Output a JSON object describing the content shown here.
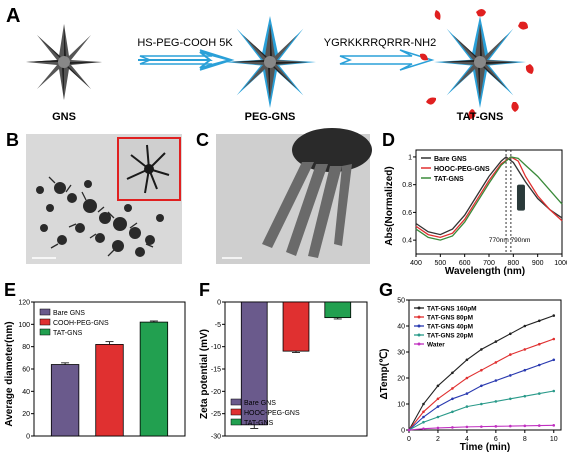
{
  "panel_letters": {
    "A": "A",
    "B": "B",
    "C": "C",
    "D": "D",
    "E": "E",
    "F": "F",
    "G": "G"
  },
  "schematic": {
    "step1_label": "HS-PEG-COOH 5K",
    "step2_label": "YGRKKRRQRRR-NH2",
    "particles": [
      "GNS",
      "PEG-GNS",
      "TAT-GNS"
    ],
    "colors": {
      "core": "#444444",
      "peg": "#2aa0d8",
      "tat": "#e02020",
      "arrow": "#2aa0d8"
    }
  },
  "chart_data": [
    {
      "panel": "D",
      "type": "line",
      "xlabel": "Wavelength (nm)",
      "ylabel": "Abs(Normalized)",
      "xlim": [
        400,
        1000
      ],
      "ylim": [
        0.3,
        1.05
      ],
      "xticks": [
        400,
        500,
        600,
        700,
        800,
        900,
        1000
      ],
      "yticks": [
        0.4,
        0.6,
        0.8,
        1.0
      ],
      "markers": [
        770,
        790
      ],
      "marker_label": "770nm 790nm",
      "legend_position": "top-left",
      "series": [
        {
          "name": "Bare GNS",
          "color": "#333333",
          "x": [
            400,
            450,
            500,
            550,
            600,
            650,
            700,
            750,
            770,
            800,
            850,
            900,
            950,
            1000
          ],
          "y": [
            0.52,
            0.46,
            0.44,
            0.48,
            0.58,
            0.72,
            0.86,
            0.97,
            1.0,
            0.96,
            0.82,
            0.7,
            0.62,
            0.56
          ]
        },
        {
          "name": "HOOC-PEG-GNS",
          "color": "#e03030",
          "x": [
            400,
            450,
            500,
            550,
            600,
            650,
            700,
            750,
            790,
            820,
            850,
            900,
            950,
            1000
          ],
          "y": [
            0.5,
            0.44,
            0.42,
            0.45,
            0.55,
            0.69,
            0.83,
            0.95,
            1.0,
            0.97,
            0.86,
            0.72,
            0.62,
            0.54
          ]
        },
        {
          "name": "TAT-GNS",
          "color": "#3a8a3a",
          "x": [
            400,
            450,
            500,
            550,
            600,
            650,
            700,
            750,
            790,
            820,
            850,
            900,
            950,
            1000
          ],
          "y": [
            0.48,
            0.42,
            0.4,
            0.43,
            0.53,
            0.67,
            0.81,
            0.94,
            1.0,
            0.99,
            0.94,
            0.86,
            0.76,
            0.66
          ]
        }
      ]
    },
    {
      "panel": "E",
      "type": "bar",
      "ylabel": "Average diameter(nm)",
      "ylim": [
        0,
        120
      ],
      "yticks": [
        0,
        20,
        40,
        60,
        80,
        100,
        120
      ],
      "legend_position": "top-left",
      "categories": [
        "Bare GNS",
        "COOH-PEG-GNS",
        "TAT-GNS"
      ],
      "values": [
        64,
        82,
        102
      ],
      "errors": [
        1.5,
        2.5,
        1.0
      ],
      "colors": [
        "#6a5a8c",
        "#e03030",
        "#22a050"
      ]
    },
    {
      "panel": "F",
      "type": "bar",
      "ylabel": "Zeta potential (mV)",
      "ylim": [
        -30,
        0
      ],
      "yticks": [
        -30,
        -25,
        -20,
        -15,
        -10,
        -5,
        0
      ],
      "legend_position": "bottom-right",
      "categories": [
        "Bare GNS",
        "HOOC-PEG-GNS",
        "TAT-GNS"
      ],
      "values": [
        -27.5,
        -11,
        -3.5
      ],
      "errors": [
        0.8,
        0.3,
        0.3
      ],
      "colors": [
        "#6a5a8c",
        "#e03030",
        "#22a050"
      ]
    },
    {
      "panel": "G",
      "type": "line",
      "xlabel": "Time (min)",
      "ylabel": "ΔTemp(℃)",
      "xlim": [
        0,
        10.5
      ],
      "ylim": [
        0,
        50
      ],
      "xticks": [
        0,
        2,
        4,
        6,
        8,
        10
      ],
      "yticks": [
        0,
        10,
        20,
        30,
        40,
        50
      ],
      "legend_position": "top-left",
      "x": [
        0,
        1,
        2,
        3,
        4,
        5,
        6,
        7,
        8,
        9,
        10
      ],
      "series": [
        {
          "name": "TAT-GNS 160pM",
          "color": "#222222",
          "values": [
            0,
            10,
            17,
            22,
            27,
            31,
            34,
            37,
            40,
            42,
            44
          ]
        },
        {
          "name": "TAT-GNS 80pM",
          "color": "#e03030",
          "values": [
            0,
            7,
            12,
            16,
            20,
            23,
            26,
            29,
            31,
            33,
            35
          ]
        },
        {
          "name": "TAT-GNS 40pM",
          "color": "#2a3ab0",
          "values": [
            0,
            5,
            9,
            12,
            14,
            17,
            19,
            21,
            23,
            25,
            27
          ]
        },
        {
          "name": "TAT-GNS 20pM",
          "color": "#2a9a8a",
          "values": [
            0,
            3,
            5,
            7,
            9,
            10,
            11,
            12,
            13,
            14,
            15
          ]
        },
        {
          "name": "Water",
          "color": "#c030c0",
          "values": [
            0,
            0.5,
            0.8,
            1,
            1.2,
            1.3,
            1.4,
            1.5,
            1.6,
            1.7,
            1.8
          ]
        }
      ]
    }
  ]
}
